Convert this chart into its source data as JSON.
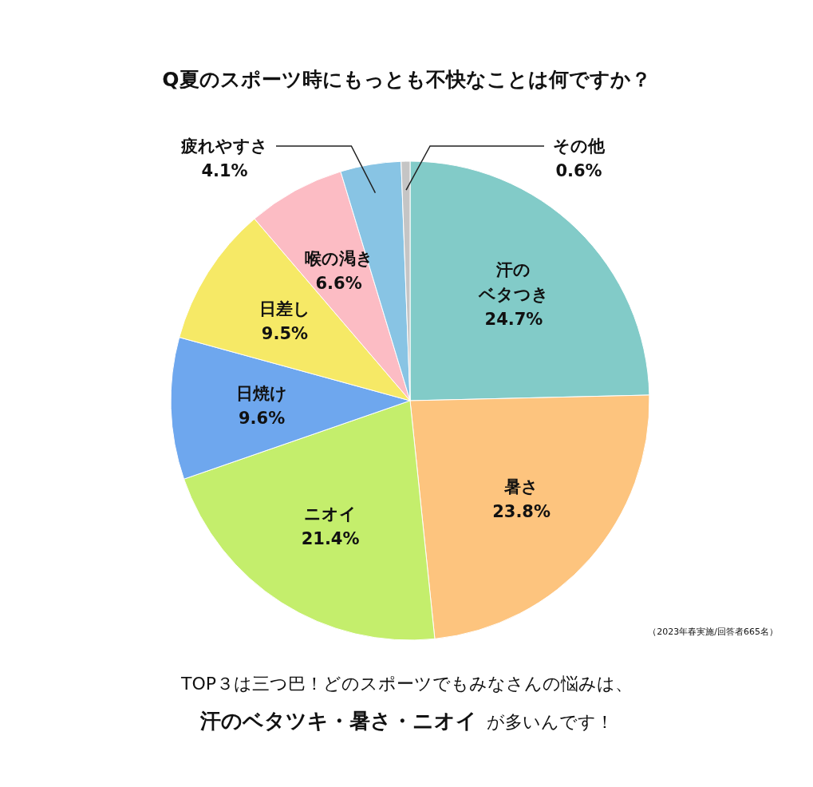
{
  "chart_data": {
    "type": "pie",
    "title": "Q夏のスポーツ時にもっとも不快なことは何ですか？",
    "categories": [
      "汗のベタつき",
      "暑さ",
      "ニオイ",
      "日焼け",
      "日差し",
      "喉の渇き",
      "疲れやすさ",
      "その他"
    ],
    "values": [
      24.7,
      23.8,
      21.4,
      9.6,
      9.5,
      6.6,
      4.1,
      0.6
    ],
    "colors": [
      "#82cbc8",
      "#fdc47e",
      "#c4ee6c",
      "#6ea7ee",
      "#f6e966",
      "#fcbcc4",
      "#88c4e4",
      "#c5c5c5"
    ],
    "value_labels": [
      "24.7%",
      "23.8%",
      "21.4%",
      "9.6%",
      "9.5%",
      "6.6%",
      "4.1%",
      "0.6%"
    ],
    "annotations": [
      "（2023年春実施/回答者665名）",
      "TOP３は三つ巴！どのスポーツでもみなさんの悩みは、",
      "汗のベタツキ・暑さ・ニオイ",
      "が多いんです！"
    ]
  }
}
